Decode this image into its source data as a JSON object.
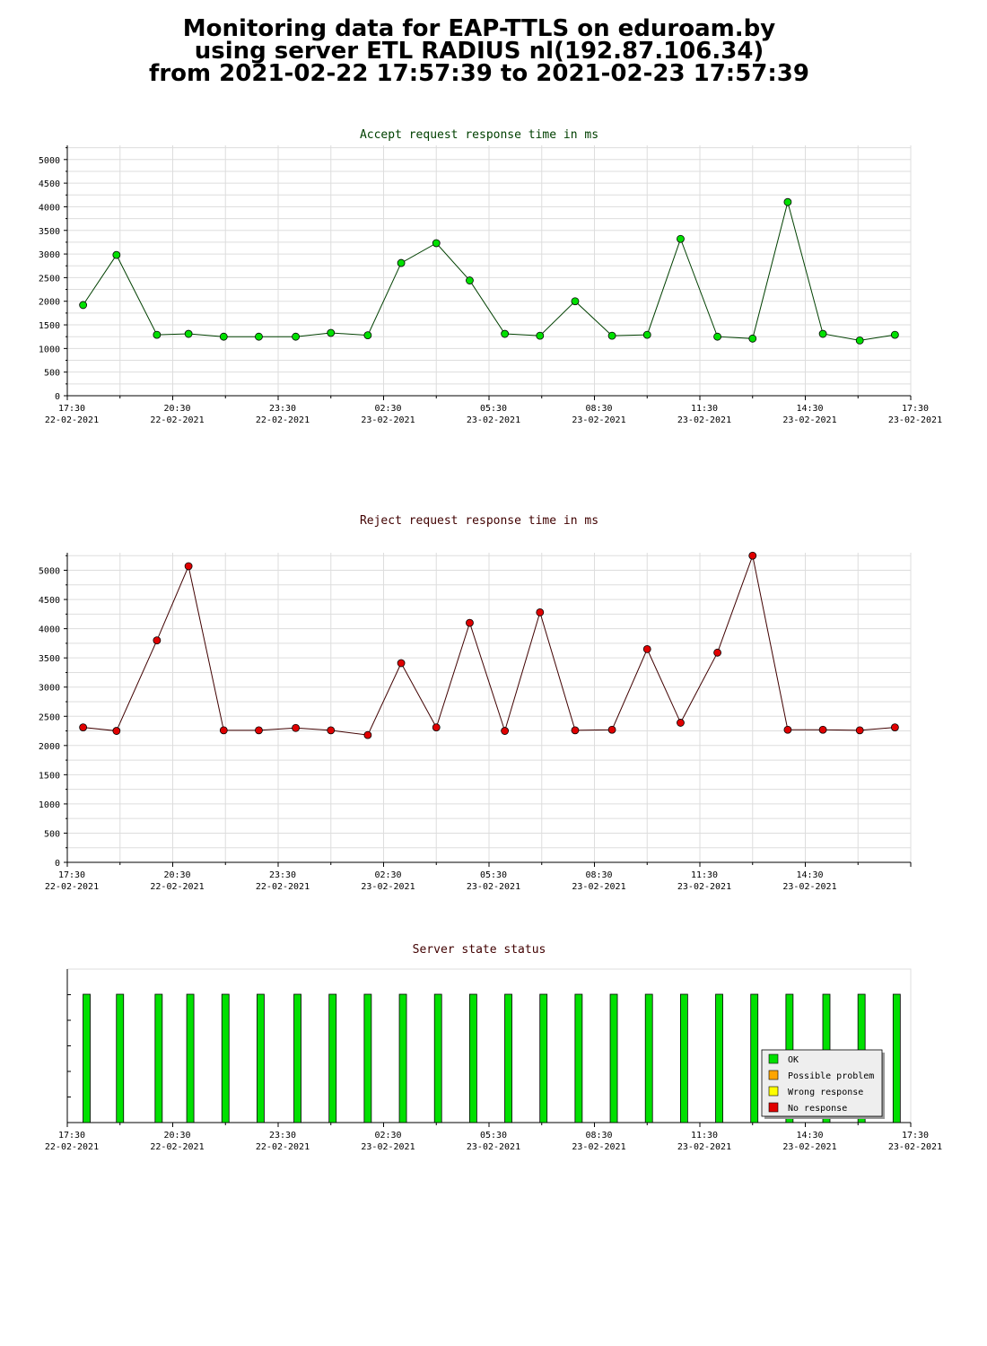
{
  "page": {
    "title_lines": [
      "Monitoring data for EAP-TTLS on eduroam.by",
      "using server ETL RADIUS nl(192.87.106.34)",
      "from 2021-02-22 17:57:39 to 2021-02-23 17:57:39"
    ]
  },
  "colors": {
    "accept_title": "#004000",
    "reject_title": "#400000",
    "accept_marker": "#00e000",
    "reject_marker": "#e00000",
    "ok": "#00e000",
    "possible_problem": "#ffa500",
    "wrong_response": "#ffff00",
    "no_response": "#e00000"
  },
  "chart_data": [
    {
      "type": "line",
      "title": "Accept request response time in ms",
      "y_ticks": [
        "0",
        "500",
        "1000",
        "1500",
        "2000",
        "2500",
        "3000",
        "3500",
        "4000",
        "4500",
        "5000"
      ],
      "ylim": [
        0,
        5300
      ],
      "xlim": [
        0,
        24
      ],
      "x_ticks": [
        {
          "time": "17:30",
          "date": "22-02-2021"
        },
        {
          "time": "20:30",
          "date": "22-02-2021"
        },
        {
          "time": "23:30",
          "date": "22-02-2021"
        },
        {
          "time": "02:30",
          "date": "23-02-2021"
        },
        {
          "time": "05:30",
          "date": "23-02-2021"
        },
        {
          "time": "08:30",
          "date": "23-02-2021"
        },
        {
          "time": "11:30",
          "date": "23-02-2021"
        },
        {
          "time": "14:30",
          "date": "23-02-2021"
        },
        {
          "time": "17:30",
          "date": "23-02-2021"
        }
      ],
      "grid": true,
      "series": [
        {
          "x": [
            0.45,
            1.4,
            2.55,
            3.45,
            4.45,
            5.45,
            6.5,
            7.5,
            8.55,
            9.5,
            10.5,
            11.45,
            12.45,
            13.45,
            14.45,
            15.5,
            16.5,
            17.45,
            18.5,
            19.5,
            20.5,
            21.5,
            22.55,
            23.55
          ],
          "values": [
            1920,
            2980,
            1290,
            1310,
            1250,
            1250,
            1250,
            1330,
            1280,
            2810,
            3230,
            2440,
            1310,
            1270,
            2000,
            1270,
            1290,
            3320,
            1250,
            1210,
            4100,
            1310,
            1170,
            1290
          ]
        }
      ]
    },
    {
      "type": "line",
      "title": "Reject request response time in ms",
      "y_ticks": [
        "0",
        "500",
        "1000",
        "1500",
        "2000",
        "2500",
        "3000",
        "3500",
        "4000",
        "4500",
        "5000"
      ],
      "ylim": [
        0,
        5300
      ],
      "xlim": [
        0,
        24
      ],
      "x_ticks": [
        {
          "time": "17:30",
          "date": "22-02-2021"
        },
        {
          "time": "20:30",
          "date": "22-02-2021"
        },
        {
          "time": "23:30",
          "date": "22-02-2021"
        },
        {
          "time": "02:30",
          "date": "23-02-2021"
        },
        {
          "time": "05:30",
          "date": "23-02-2021"
        },
        {
          "time": "08:30",
          "date": "23-02-2021"
        },
        {
          "time": "11:30",
          "date": "23-02-2021"
        },
        {
          "time": "14:30",
          "date": "23-02-2021"
        }
      ],
      "grid": true,
      "series": [
        {
          "x": [
            0.45,
            1.4,
            2.55,
            3.45,
            4.45,
            5.45,
            6.5,
            7.5,
            8.55,
            9.5,
            10.5,
            11.45,
            12.45,
            13.45,
            14.45,
            15.5,
            16.5,
            17.45,
            18.5,
            19.5,
            20.5,
            21.5,
            22.55,
            23.55
          ],
          "values": [
            2310,
            2250,
            3800,
            5070,
            2260,
            2260,
            2300,
            2260,
            2180,
            3410,
            2310,
            4100,
            2250,
            4280,
            2260,
            2270,
            3650,
            2390,
            3590,
            5250,
            2270,
            2270,
            2260,
            2310
          ]
        }
      ]
    },
    {
      "type": "bar",
      "title": "Server state status",
      "xlim": [
        0,
        24
      ],
      "x_ticks": [
        {
          "time": "17:30",
          "date": "22-02-2021"
        },
        {
          "time": "20:30",
          "date": "22-02-2021"
        },
        {
          "time": "23:30",
          "date": "22-02-2021"
        },
        {
          "time": "02:30",
          "date": "23-02-2021"
        },
        {
          "time": "05:30",
          "date": "23-02-2021"
        },
        {
          "time": "08:30",
          "date": "23-02-2021"
        },
        {
          "time": "11:30",
          "date": "23-02-2021"
        },
        {
          "time": "14:30",
          "date": "23-02-2021"
        },
        {
          "time": "17:30",
          "date": "23-02-2021"
        }
      ],
      "legend": [
        "OK",
        "Possible problem",
        "Wrong response",
        "No response"
      ],
      "legend_placement": "bottom-right",
      "x": [
        0.55,
        1.5,
        2.6,
        3.5,
        4.5,
        5.5,
        6.55,
        7.55,
        8.55,
        9.55,
        10.55,
        11.55,
        12.55,
        13.55,
        14.55,
        15.55,
        16.55,
        17.55,
        18.55,
        19.55,
        20.55,
        21.6,
        22.6,
        23.6
      ],
      "states": [
        "OK",
        "OK",
        "OK",
        "OK",
        "OK",
        "OK",
        "OK",
        "OK",
        "OK",
        "OK",
        "OK",
        "OK",
        "OK",
        "OK",
        "OK",
        "OK",
        "OK",
        "OK",
        "OK",
        "OK",
        "OK",
        "OK",
        "OK",
        "OK"
      ]
    }
  ]
}
